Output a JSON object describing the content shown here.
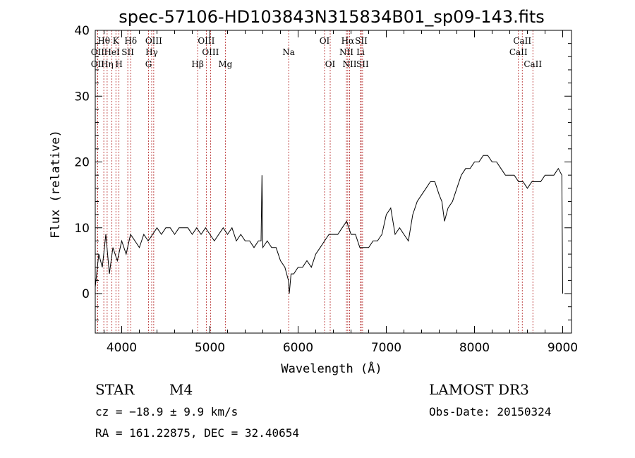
{
  "chart_data": {
    "type": "line",
    "title": "spec-57106-HD103843N315834B01_sp09-143.fits",
    "xlabel": "Wavelength (Å)",
    "ylabel": "Flux (relative)",
    "xlim": [
      3700,
      9100
    ],
    "ylim": [
      -6,
      40
    ],
    "xticks": [
      4000,
      5000,
      6000,
      7000,
      8000,
      9000
    ],
    "yticks": [
      0,
      10,
      20,
      30,
      40
    ],
    "series": [
      {
        "x": [
          3700,
          3740,
          3780,
          3820,
          3860,
          3900,
          3950,
          4000,
          4050,
          4100,
          4150,
          4200,
          4250,
          4300,
          4350,
          4400,
          4450,
          4500,
          4550,
          4600,
          4650,
          4700,
          4750,
          4800,
          4850,
          4900,
          4950,
          5000,
          5050,
          5100,
          5150,
          5200,
          5250,
          5300,
          5350,
          5400,
          5450,
          5500,
          5550,
          5580,
          5590,
          5600,
          5650,
          5700,
          5750,
          5800,
          5850,
          5890,
          5900,
          5920,
          5950,
          6000,
          6050,
          6100,
          6150,
          6200,
          6250,
          6300,
          6350,
          6400,
          6450,
          6500,
          6550,
          6600,
          6650,
          6700,
          6750,
          6800,
          6850,
          6900,
          6950,
          7000,
          7050,
          7100,
          7150,
          7200,
          7250,
          7300,
          7350,
          7400,
          7450,
          7500,
          7550,
          7600,
          7630,
          7660,
          7700,
          7750,
          7800,
          7850,
          7900,
          7950,
          8000,
          8050,
          8100,
          8150,
          8200,
          8250,
          8300,
          8350,
          8400,
          8450,
          8500,
          8550,
          8600,
          8650,
          8700,
          8750,
          8800,
          8850,
          8900,
          8950,
          8990,
          9000
        ],
        "y": [
          1,
          6,
          4,
          9,
          3,
          7,
          5,
          8,
          6,
          9,
          8,
          7,
          9,
          8,
          9,
          10,
          9,
          10,
          10,
          9,
          10,
          10,
          10,
          9,
          10,
          9,
          10,
          9,
          8,
          9,
          10,
          9,
          10,
          8,
          9,
          8,
          8,
          7,
          8,
          8,
          18,
          7,
          8,
          7,
          7,
          5,
          4,
          2,
          0,
          3,
          3,
          4,
          4,
          5,
          4,
          6,
          7,
          8,
          9,
          9,
          9,
          10,
          11,
          9,
          9,
          7,
          7,
          7,
          8,
          8,
          9,
          12,
          13,
          9,
          10,
          9,
          8,
          12,
          14,
          15,
          16,
          17,
          17,
          15,
          14,
          11,
          13,
          14,
          16,
          18,
          19,
          19,
          20,
          20,
          21,
          21,
          20,
          20,
          19,
          18,
          18,
          18,
          17,
          17,
          16,
          17,
          17,
          17,
          18,
          18,
          18,
          19,
          18,
          0
        ]
      }
    ],
    "lines": [
      {
        "label": "Hθ",
        "x": 3797,
        "row": 1
      },
      {
        "label": "OII",
        "x": 3727,
        "row": 2
      },
      {
        "label": "OII",
        "x": 3727,
        "row": 3
      },
      {
        "label": "K",
        "x": 3934,
        "row": 1
      },
      {
        "label": "HeI",
        "x": 3889,
        "row": 2
      },
      {
        "label": "Hη",
        "x": 3835,
        "row": 3
      },
      {
        "label": "SII",
        "x": 4069,
        "row": 2
      },
      {
        "label": "H",
        "x": 3969,
        "row": 3
      },
      {
        "label": "Hδ",
        "x": 4102,
        "row": 1
      },
      {
        "label": "OIII",
        "x": 4363,
        "row": 1
      },
      {
        "label": "Hγ",
        "x": 4340,
        "row": 2
      },
      {
        "label": "G",
        "x": 4304,
        "row": 3
      },
      {
        "label": "OIII",
        "x": 4959,
        "row": 1
      },
      {
        "label": "OIII",
        "x": 5007,
        "row": 2
      },
      {
        "label": "Hβ",
        "x": 4861,
        "row": 3
      },
      {
        "label": "Mg",
        "x": 5175,
        "row": 3
      },
      {
        "label": "Na",
        "x": 5893,
        "row": 2
      },
      {
        "label": "OI",
        "x": 6300,
        "row": 1
      },
      {
        "label": "OI",
        "x": 6364,
        "row": 3
      },
      {
        "label": "Hα",
        "x": 6563,
        "row": 1
      },
      {
        "label": "SII",
        "x": 6716,
        "row": 1
      },
      {
        "label": "NII",
        "x": 6548,
        "row": 2
      },
      {
        "label": "Li",
        "x": 6708,
        "row": 2
      },
      {
        "label": "NII",
        "x": 6584,
        "row": 3
      },
      {
        "label": "SII",
        "x": 6731,
        "row": 3
      },
      {
        "label": "CaII",
        "x": 8542,
        "row": 1
      },
      {
        "label": "CaII",
        "x": 8498,
        "row": 2
      },
      {
        "label": "CaII",
        "x": 8662,
        "row": 3
      }
    ]
  },
  "info": {
    "type_label": "STAR",
    "subclass": "M4",
    "cz": "cz = −18.9 ± 9.9 km/s",
    "radec": "RA = 161.22875, DEC =  32.40654",
    "survey": "LAMOST DR3",
    "obs_date": "Obs-Date: 20150324"
  }
}
